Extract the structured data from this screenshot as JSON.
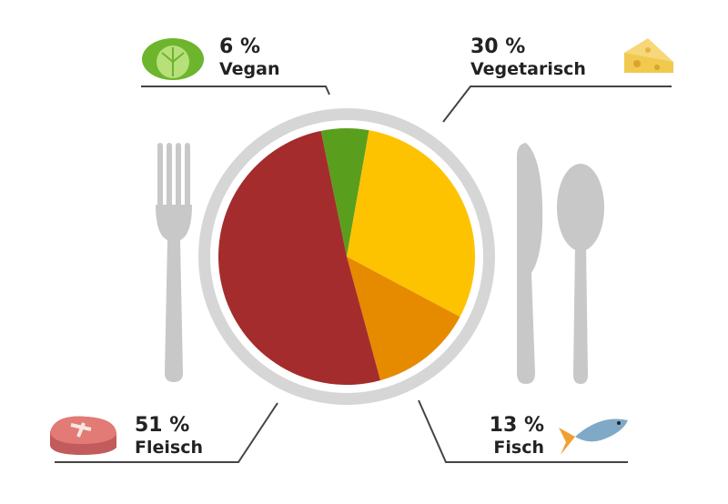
{
  "chart_data": {
    "type": "pie",
    "categories": [
      "Vegan",
      "Vegetarisch",
      "Fisch",
      "Fleisch"
    ],
    "values": [
      6,
      30,
      13,
      51
    ],
    "value_labels": [
      "6 %",
      "30 %",
      "13 %",
      "51 %"
    ],
    "colors": [
      "#5a9e1e",
      "#fdc300",
      "#e68a00",
      "#a52c2c"
    ]
  }
}
